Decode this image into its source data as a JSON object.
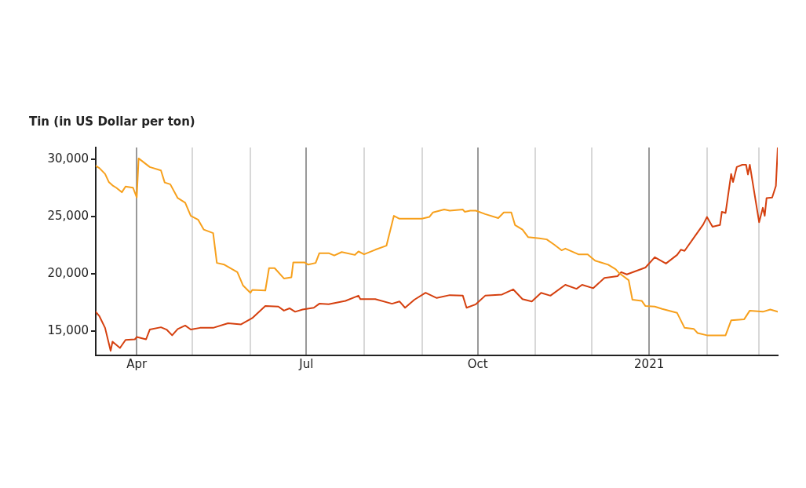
{
  "chart_data": {
    "type": "line",
    "title": "Tin (in US Dollar per ton)",
    "xlim": [
      "2020-03-10",
      "2021-03-11"
    ],
    "xticks": [
      {
        "value": "2020-04",
        "label": "Apr"
      },
      {
        "value": "2020-05",
        "label": null
      },
      {
        "value": "2020-06",
        "label": null
      },
      {
        "value": "2020-07",
        "label": "Jul"
      },
      {
        "value": "2020-08",
        "label": null
      },
      {
        "value": "2020-09",
        "label": null
      },
      {
        "value": "2020-10",
        "label": "Oct"
      },
      {
        "value": "2020-11",
        "label": null
      },
      {
        "value": "2020-12",
        "label": null
      },
      {
        "value": "2021-01",
        "label": "2021"
      },
      {
        "value": "2021-02",
        "label": null
      },
      {
        "value": "2021-03",
        "label": null
      }
    ],
    "ylim": [
      12900,
      31000
    ],
    "yticks": [
      {
        "value": 15000,
        "label": "15,000"
      },
      {
        "value": 20000,
        "label": "20,000"
      },
      {
        "value": 25000,
        "label": "25,000"
      },
      {
        "value": 30000,
        "label": "30,000"
      }
    ],
    "grid": "x",
    "legend": false,
    "marker": "none",
    "line_style": "solid",
    "series": [
      {
        "color": "#f7a01c",
        "x": [
          "2020-03-10",
          "2020-03-12",
          "2020-03-15",
          "2020-03-17",
          "2020-03-19",
          "2020-03-21",
          "2020-03-24",
          "2020-03-26",
          "2020-03-30",
          "2020-04-01",
          "2020-04-02",
          "2020-04-08",
          "2020-04-14",
          "2020-04-16",
          "2020-04-19",
          "2020-04-23",
          "2020-04-27",
          "2020-04-30",
          "2020-05-04",
          "2020-05-07",
          "2020-05-12",
          "2020-05-14",
          "2020-05-18",
          "2020-05-25",
          "2020-05-28",
          "2020-06-01",
          "2020-06-02",
          "2020-06-09",
          "2020-06-11",
          "2020-06-14",
          "2020-06-19",
          "2020-06-23",
          "2020-06-24",
          "2020-06-30",
          "2020-07-02",
          "2020-07-06",
          "2020-07-08",
          "2020-07-13",
          "2020-07-16",
          "2020-07-20",
          "2020-07-27",
          "2020-07-29",
          "2020-08-01",
          "2020-08-07",
          "2020-08-13",
          "2020-08-17",
          "2020-08-20",
          "2020-08-27",
          "2020-09-01",
          "2020-09-05",
          "2020-09-07",
          "2020-09-13",
          "2020-09-16",
          "2020-09-23",
          "2020-09-24",
          "2020-09-27",
          "2020-09-30",
          "2020-10-05",
          "2020-10-12",
          "2020-10-15",
          "2020-10-19",
          "2020-10-21",
          "2020-10-25",
          "2020-10-28",
          "2020-11-03",
          "2020-11-07",
          "2020-11-11",
          "2020-11-15",
          "2020-11-17",
          "2020-11-24",
          "2020-11-29",
          "2020-12-03",
          "2020-12-10",
          "2020-12-14",
          "2020-12-16",
          "2020-12-21",
          "2020-12-23",
          "2020-12-28",
          "2020-12-30",
          "2021-01-04",
          "2021-01-08",
          "2021-01-16",
          "2021-01-20",
          "2021-01-25",
          "2021-01-27",
          "2021-02-01",
          "2021-02-11",
          "2021-02-14",
          "2021-02-21",
          "2021-02-24",
          "2021-03-03",
          "2021-03-07",
          "2021-03-11"
        ],
        "values": [
          29400,
          29200,
          28700,
          28000,
          27700,
          27500,
          27100,
          27600,
          27500,
          26650,
          30050,
          29300,
          29000,
          27950,
          27800,
          26600,
          26200,
          25050,
          24700,
          23850,
          23550,
          20950,
          20800,
          20150,
          19000,
          18350,
          18600,
          18550,
          20500,
          20500,
          19600,
          19700,
          21000,
          21000,
          20800,
          20950,
          21800,
          21800,
          21600,
          21900,
          21650,
          21950,
          21700,
          22100,
          22450,
          25050,
          24800,
          24800,
          24800,
          24950,
          25350,
          25600,
          25500,
          25600,
          25400,
          25500,
          25500,
          25200,
          24850,
          25350,
          25350,
          24250,
          23850,
          23200,
          23100,
          23000,
          22550,
          22050,
          22200,
          21700,
          21700,
          21150,
          20800,
          20400,
          20050,
          19450,
          17750,
          17650,
          17200,
          17150,
          16950,
          16600,
          15300,
          15200,
          14850,
          14650,
          14650,
          15950,
          16050,
          16800,
          16700,
          16900,
          16700
        ]
      },
      {
        "color": "#d5400f",
        "x": [
          "2020-03-10",
          "2020-03-12",
          "2020-03-15",
          "2020-03-18",
          "2020-03-19",
          "2020-03-23",
          "2020-03-26",
          "2020-03-31",
          "2020-04-01",
          "2020-04-06",
          "2020-04-08",
          "2020-04-14",
          "2020-04-17",
          "2020-04-20",
          "2020-04-23",
          "2020-04-27",
          "2020-04-30",
          "2020-05-05",
          "2020-05-12",
          "2020-05-20",
          "2020-05-27",
          "2020-06-02",
          "2020-06-09",
          "2020-06-16",
          "2020-06-19",
          "2020-06-22",
          "2020-06-25",
          "2020-06-29",
          "2020-07-05",
          "2020-07-08",
          "2020-07-13",
          "2020-07-22",
          "2020-07-29",
          "2020-07-30",
          "2020-08-07",
          "2020-08-16",
          "2020-08-20",
          "2020-08-23",
          "2020-08-28",
          "2020-09-03",
          "2020-09-09",
          "2020-09-16",
          "2020-09-23",
          "2020-09-25",
          "2020-09-30",
          "2020-10-05",
          "2020-10-14",
          "2020-10-20",
          "2020-10-25",
          "2020-10-30",
          "2020-11-04",
          "2020-11-09",
          "2020-11-17",
          "2020-11-23",
          "2020-11-26",
          "2020-12-02",
          "2020-12-08",
          "2020-12-15",
          "2020-12-17",
          "2020-12-20",
          "2020-12-30",
          "2021-01-04",
          "2021-01-10",
          "2021-01-16",
          "2021-01-18",
          "2021-01-20",
          "2021-01-25",
          "2021-01-30",
          "2021-02-01",
          "2021-02-04",
          "2021-02-08",
          "2021-02-09",
          "2021-02-11",
          "2021-02-14",
          "2021-02-15",
          "2021-02-17",
          "2021-02-20",
          "2021-02-22",
          "2021-02-23",
          "2021-02-24",
          "2021-03-01",
          "2021-03-03",
          "2021-03-04",
          "2021-03-05",
          "2021-03-08",
          "2021-03-10",
          "2021-03-11"
        ],
        "values": [
          16700,
          16300,
          15300,
          13300,
          14100,
          13550,
          14250,
          14300,
          14500,
          14300,
          15150,
          15350,
          15150,
          14650,
          15200,
          15500,
          15150,
          15300,
          15300,
          15700,
          15600,
          16150,
          17200,
          17150,
          16800,
          17000,
          16700,
          16900,
          17050,
          17400,
          17350,
          17650,
          18100,
          17800,
          17800,
          17400,
          17600,
          17050,
          17750,
          18350,
          17900,
          18150,
          18100,
          17050,
          17350,
          18100,
          18200,
          18650,
          17800,
          17600,
          18350,
          18100,
          19050,
          18700,
          19050,
          18750,
          19650,
          19800,
          20150,
          19950,
          20550,
          21450,
          20900,
          21650,
          22100,
          22000,
          23150,
          24300,
          24950,
          24100,
          24250,
          25400,
          25300,
          28700,
          28000,
          29300,
          29500,
          29500,
          28650,
          29500,
          24500,
          25750,
          25050,
          26600,
          26650,
          27650,
          31000
        ]
      }
    ]
  }
}
